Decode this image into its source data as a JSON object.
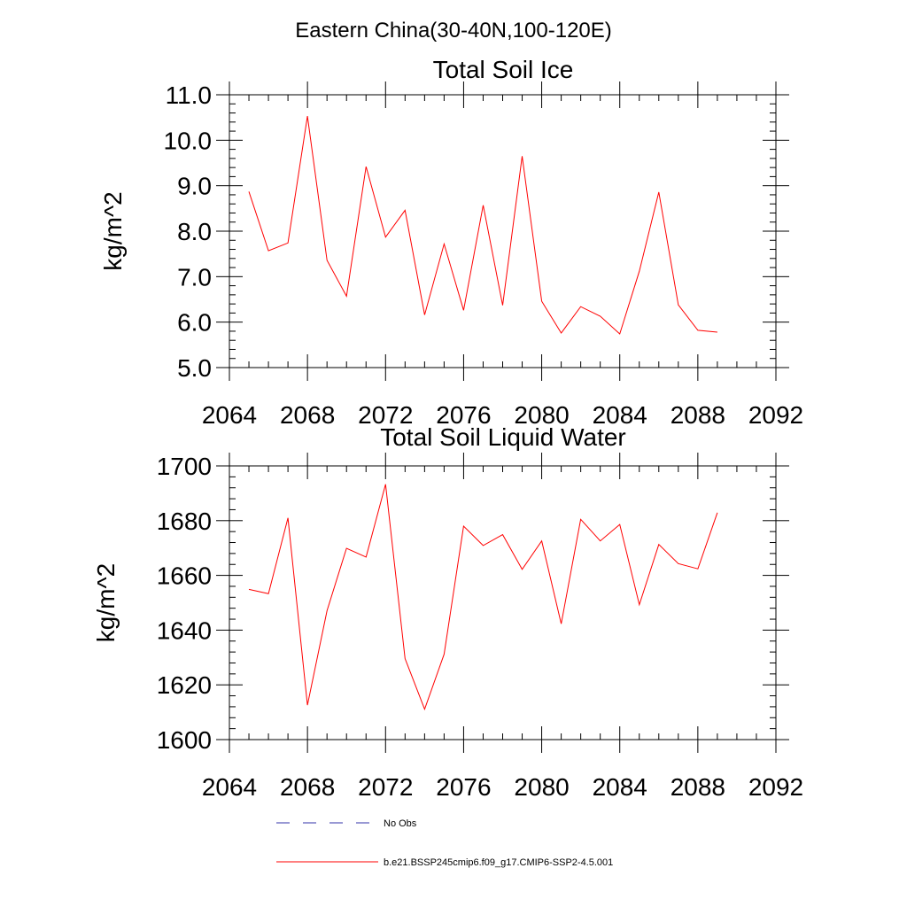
{
  "figure": {
    "title": "Eastern China(30-40N,100-120E)"
  },
  "legend": {
    "entries": [
      {
        "label": "No Obs",
        "color": "#3333aa",
        "style": "dashed"
      },
      {
        "label": "b.e21.BSSP245cmip6.f09_g17.CMIP6-SSP2-4.5.001",
        "color": "#ff0000",
        "style": "solid"
      }
    ]
  },
  "chart_data": [
    {
      "type": "line",
      "title": "Total Soil Ice",
      "ylabel": "kg/m^2",
      "xlabel": "",
      "xlim": [
        2064,
        2092
      ],
      "ylim": [
        5.0,
        11.0
      ],
      "xticks": [
        2064,
        2068,
        2072,
        2076,
        2080,
        2084,
        2088,
        2092
      ],
      "xtick_labels": [
        "2064",
        "2068",
        "2072",
        "2076",
        "2080",
        "2084",
        "2088",
        "2092"
      ],
      "yticks": [
        5.0,
        6.0,
        7.0,
        8.0,
        9.0,
        10.0,
        11.0
      ],
      "ytick_labels": [
        "5.0",
        "6.0",
        "7.0",
        "8.0",
        "9.0",
        "10.0",
        "11.0"
      ],
      "grid": false,
      "series": [
        {
          "name": "b.e21.BSSP245cmip6.f09_g17.CMIP6-SSP2-4.5.001",
          "color": "#ff0000",
          "x": [
            2065,
            2066,
            2067,
            2068,
            2069,
            2070,
            2071,
            2072,
            2073,
            2074,
            2075,
            2076,
            2077,
            2078,
            2079,
            2080,
            2081,
            2082,
            2083,
            2084,
            2085,
            2086,
            2087,
            2088,
            2089
          ],
          "values": [
            8.87,
            7.57,
            7.74,
            10.53,
            7.36,
            6.57,
            9.42,
            7.87,
            8.46,
            6.16,
            7.72,
            6.26,
            8.57,
            6.37,
            9.65,
            6.46,
            5.76,
            6.34,
            6.13,
            5.74,
            7.12,
            8.86,
            6.38,
            5.82,
            5.78
          ]
        }
      ]
    },
    {
      "type": "line",
      "title": "Total Soil Liquid Water",
      "ylabel": "kg/m^2",
      "xlabel": "",
      "xlim": [
        2064,
        2092
      ],
      "ylim": [
        1600,
        1700
      ],
      "xticks": [
        2064,
        2068,
        2072,
        2076,
        2080,
        2084,
        2088,
        2092
      ],
      "xtick_labels": [
        "2064",
        "2068",
        "2072",
        "2076",
        "2080",
        "2084",
        "2088",
        "2092"
      ],
      "yticks": [
        1600,
        1620,
        1640,
        1660,
        1680,
        1700
      ],
      "ytick_labels": [
        "1600",
        "1620",
        "1640",
        "1660",
        "1680",
        "1700"
      ],
      "grid": false,
      "series": [
        {
          "name": "b.e21.BSSP245cmip6.f09_g17.CMIP6-SSP2-4.5.001",
          "color": "#ff0000",
          "x": [
            2065,
            2066,
            2067,
            2068,
            2069,
            2070,
            2071,
            2072,
            2073,
            2074,
            2075,
            2076,
            2077,
            2078,
            2079,
            2080,
            2081,
            2082,
            2083,
            2084,
            2085,
            2086,
            2087,
            2088,
            2089
          ],
          "values": [
            1654.9,
            1653.3,
            1681.0,
            1612.6,
            1647.1,
            1669.9,
            1666.7,
            1693.3,
            1629.6,
            1611.1,
            1631.2,
            1678.0,
            1670.9,
            1674.9,
            1662.2,
            1672.6,
            1642.3,
            1680.5,
            1672.6,
            1678.6,
            1649.3,
            1671.3,
            1664.3,
            1662.4,
            1682.9
          ]
        }
      ]
    }
  ]
}
